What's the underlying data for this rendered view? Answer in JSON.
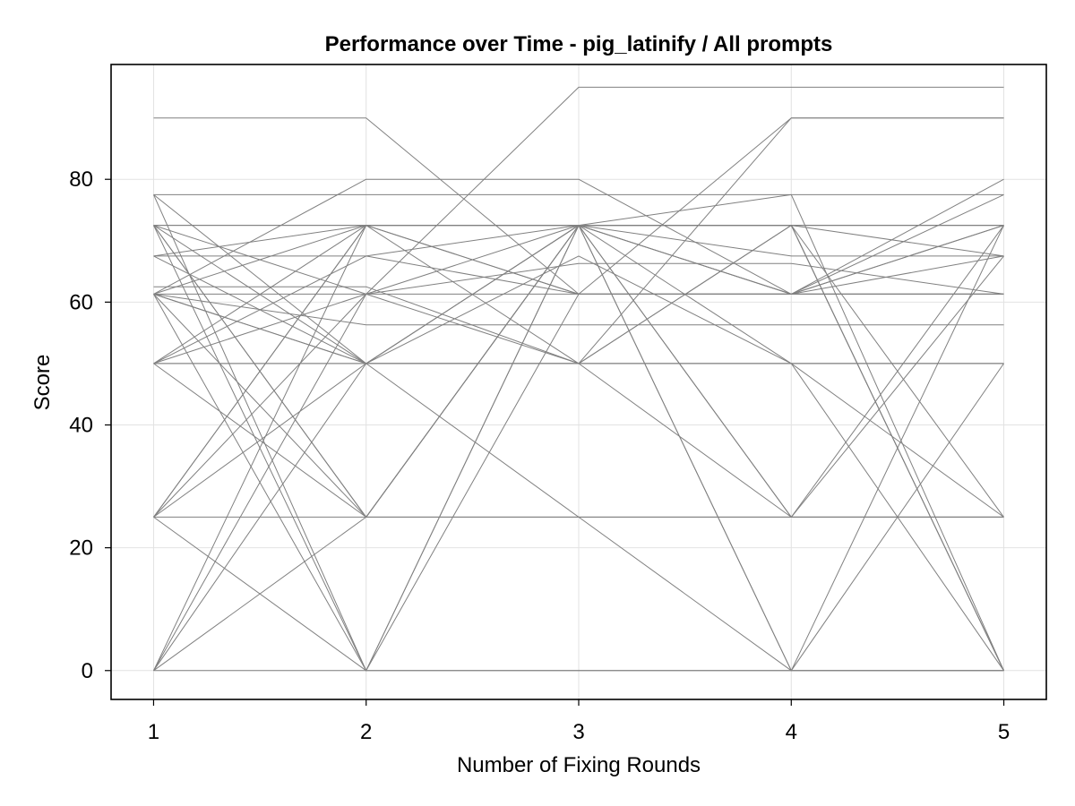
{
  "chart_data": {
    "type": "line",
    "title": "Performance over Time - pig_latinify / All prompts",
    "xlabel": "Number of Fixing Rounds",
    "ylabel": "Score",
    "x": [
      1,
      2,
      3,
      4,
      5
    ],
    "xlim": [
      0.8,
      5.2
    ],
    "ylim": [
      -4.7,
      98.7
    ],
    "xticks": [
      1,
      2,
      3,
      4,
      5
    ],
    "yticks": [
      0,
      20,
      40,
      60,
      80
    ],
    "grid": true,
    "legend": "none",
    "line_color": "#808080",
    "series": [
      {
        "values": [
          90,
          90,
          61.3,
          61.3,
          61.3
        ]
      },
      {
        "values": [
          77.5,
          77.5,
          77.5,
          77.5,
          77.5
        ]
      },
      {
        "values": [
          77.5,
          50,
          72.5,
          72.5,
          72.5
        ]
      },
      {
        "values": [
          72.5,
          72.5,
          72.5,
          72.5,
          72.5
        ]
      },
      {
        "values": [
          72.5,
          72.5,
          61.3,
          61.3,
          61.3
        ]
      },
      {
        "values": [
          72.5,
          61.3,
          50,
          50,
          50
        ]
      },
      {
        "values": [
          72.5,
          50,
          50,
          25,
          25
        ]
      },
      {
        "values": [
          72.5,
          25,
          72.5,
          72.5,
          0
        ]
      },
      {
        "values": [
          72.5,
          0,
          61.3,
          90,
          90
        ]
      },
      {
        "values": [
          67.5,
          67.5,
          61.3,
          61.3,
          67.5
        ]
      },
      {
        "values": [
          67.5,
          72.5,
          72.5,
          67.5,
          67.5
        ]
      },
      {
        "values": [
          62.5,
          62.5,
          50,
          50,
          50
        ]
      },
      {
        "values": [
          61.3,
          61.3,
          61.3,
          61.3,
          61.3
        ]
      },
      {
        "values": [
          61.3,
          72.5,
          72.5,
          72.5,
          0
        ]
      },
      {
        "values": [
          61.3,
          50,
          25,
          25,
          25
        ]
      },
      {
        "values": [
          61.3,
          80,
          80,
          61.3,
          72.5
        ]
      },
      {
        "values": [
          61.3,
          56.3,
          56.3,
          56.3,
          56.3
        ]
      },
      {
        "values": [
          61.3,
          0,
          72.5,
          72.5,
          72.5
        ]
      },
      {
        "values": [
          50,
          50,
          50,
          50,
          50
        ]
      },
      {
        "values": [
          50,
          72.5,
          61.3,
          61.3,
          72.5
        ]
      },
      {
        "values": [
          50,
          25,
          25,
          0,
          0
        ]
      },
      {
        "values": [
          50,
          67.5,
          72.5,
          50,
          25
        ]
      },
      {
        "values": [
          50,
          61.3,
          95,
          95,
          95
        ]
      },
      {
        "values": [
          25,
          25,
          25,
          25,
          25
        ]
      },
      {
        "values": [
          25,
          72.5,
          72.5,
          61.3,
          61.3
        ]
      },
      {
        "values": [
          25,
          61.3,
          66.3,
          66.3,
          61.3
        ]
      },
      {
        "values": [
          25,
          50,
          50,
          72.5,
          0
        ]
      },
      {
        "values": [
          25,
          0,
          0,
          0,
          0
        ]
      },
      {
        "values": [
          0,
          0,
          0,
          0,
          0
        ]
      },
      {
        "values": [
          0,
          25,
          72.5,
          0,
          72.5
        ]
      },
      {
        "values": [
          0,
          50,
          72.5,
          25,
          72.5
        ]
      },
      {
        "values": [
          0,
          72.5,
          50,
          90,
          90
        ]
      },
      {
        "values": [
          0,
          61.3,
          72.5,
          77.5,
          0
        ]
      },
      {
        "values": [
          77.5,
          0,
          72.5,
          61.3,
          80
        ]
      },
      {
        "values": [
          72.5,
          25,
          72.5,
          0,
          50
        ]
      },
      {
        "values": [
          67.5,
          50,
          50,
          72.5,
          67.5
        ]
      },
      {
        "values": [
          50,
          50,
          72.5,
          25,
          67.5
        ]
      },
      {
        "values": [
          61.3,
          50,
          67.5,
          50,
          0
        ]
      },
      {
        "values": [
          25,
          72.5,
          72.5,
          61.3,
          77.5
        ]
      },
      {
        "values": [
          61.3,
          25,
          72.5,
          72.5,
          25
        ]
      }
    ]
  }
}
